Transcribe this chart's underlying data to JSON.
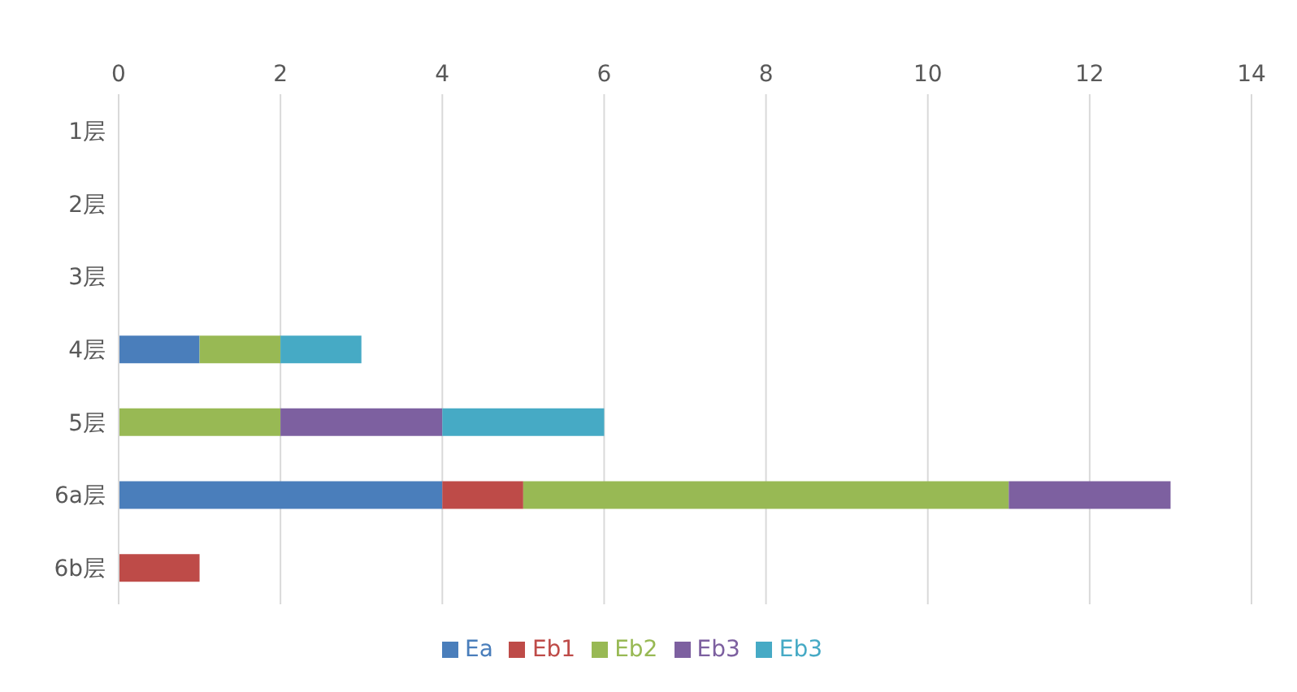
{
  "chart_data": {
    "type": "bar",
    "orientation": "horizontal",
    "stacked": true,
    "categories": [
      "1层",
      "2层",
      "3层",
      "4层",
      "5层",
      "6a层",
      "6b层"
    ],
    "series": [
      {
        "name": "Ea",
        "color": "#4a7ebb",
        "values": [
          null,
          null,
          null,
          1,
          null,
          4,
          null
        ]
      },
      {
        "name": "Eb1",
        "color": "#be4b48",
        "values": [
          null,
          null,
          null,
          null,
          null,
          1,
          1
        ]
      },
      {
        "name": "Eb2",
        "color": "#98b954",
        "values": [
          null,
          null,
          null,
          1,
          2,
          6,
          null
        ]
      },
      {
        "name": "Eb3",
        "color": "#7d60a0",
        "values": [
          null,
          null,
          null,
          null,
          2,
          2,
          null
        ]
      },
      {
        "name": "Eb3",
        "color": "#46aac5",
        "values": [
          null,
          null,
          null,
          1,
          2,
          null,
          null
        ]
      }
    ],
    "xlim": [
      0,
      14
    ],
    "xticks": [
      0,
      2,
      4,
      6,
      8,
      10,
      12,
      14
    ],
    "grid": "x",
    "legend": "bottom"
  }
}
